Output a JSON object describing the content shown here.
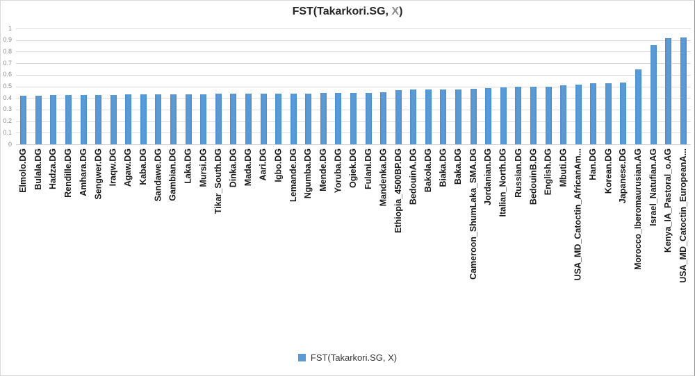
{
  "title": {
    "part_main": "FST(Takarkori.SG, ",
    "part_x": "X",
    "part_close": ")",
    "full": "FST(Takarkori.SG, X)"
  },
  "legend": {
    "label": "FST(Takarkori.SG, X)",
    "swatch_color": "#5b9bd5"
  },
  "colors": {
    "bar": "#5b9bd5",
    "bar_edge": "#4e8ccb",
    "gridline": "#dcdcdc",
    "axis_line": "#cfcfcf",
    "axis_text": "#8a8a8a",
    "category_text": "#1a1a1a",
    "title_text": "#262626",
    "title_x": "#8c8c8c",
    "legend_text": "#333333"
  },
  "chart_data": {
    "type": "bar",
    "title": "FST(Takarkori.SG, X)",
    "series_name": "FST(Takarkori.SG, X)",
    "xlabel": "",
    "ylabel": "",
    "ylim": [
      0,
      1
    ],
    "ytick_step": 0.1,
    "grid": true,
    "legend_position": "bottom",
    "y_ticks": [
      "1",
      "0.9",
      "0.8",
      "0.7",
      "0.6",
      "0.5",
      "0.4",
      "0.3",
      "0.2",
      "0.1",
      "0"
    ],
    "categories": [
      "Elmolo.DG",
      "Bulala.DG",
      "Hadza.DG",
      "Rendille.DG",
      "Amhara.DG",
      "Sengwer.DG",
      "Iraqw.DG",
      "Agaw.DG",
      "Kaba.DG",
      "Sandawe.DG",
      "Gambian.DG",
      "Laka.DG",
      "Mursi.DG",
      "Tikar_South.DG",
      "Dinka.DG",
      "Mada.DG",
      "Aari.DG",
      "Igbo.DG",
      "Lemande.DG",
      "Ngumba.DG",
      "Mende.DG",
      "Yoruba.DG",
      "Ogiek.DG",
      "Fulani.DG",
      "Mandenka.DG",
      "Ethiopia_4500BP.DG",
      "BedouinA.DG",
      "Bakola.DG",
      "Biaka.DG",
      "Baka.DG",
      "Cameroon_ShumLaka_SMA.DG",
      "Jordanian.DG",
      "Italian_North.DG",
      "Russian.DG",
      "BedouinB.DG",
      "English.DG",
      "Mbuti.DG",
      "USA_MD_Catoctin_AfricanAm...",
      "Han.DG",
      "Korean.DG",
      "Japanese.DG",
      "Morocco_Iberomaurusian.AG",
      "Israel_Natufian.AG",
      "Kenya_IA_Pastoral_o.AG",
      "USA_MD_Catoctin_EuropeanA..."
    ],
    "values": [
      0.418,
      0.421,
      0.423,
      0.424,
      0.425,
      0.427,
      0.428,
      0.429,
      0.43,
      0.431,
      0.432,
      0.433,
      0.434,
      0.435,
      0.435,
      0.436,
      0.437,
      0.437,
      0.438,
      0.439,
      0.441,
      0.443,
      0.444,
      0.446,
      0.447,
      0.468,
      0.471,
      0.472,
      0.473,
      0.475,
      0.477,
      0.485,
      0.491,
      0.495,
      0.497,
      0.499,
      0.51,
      0.513,
      0.528,
      0.53,
      0.531,
      0.645,
      0.858,
      0.918,
      0.92
    ]
  }
}
